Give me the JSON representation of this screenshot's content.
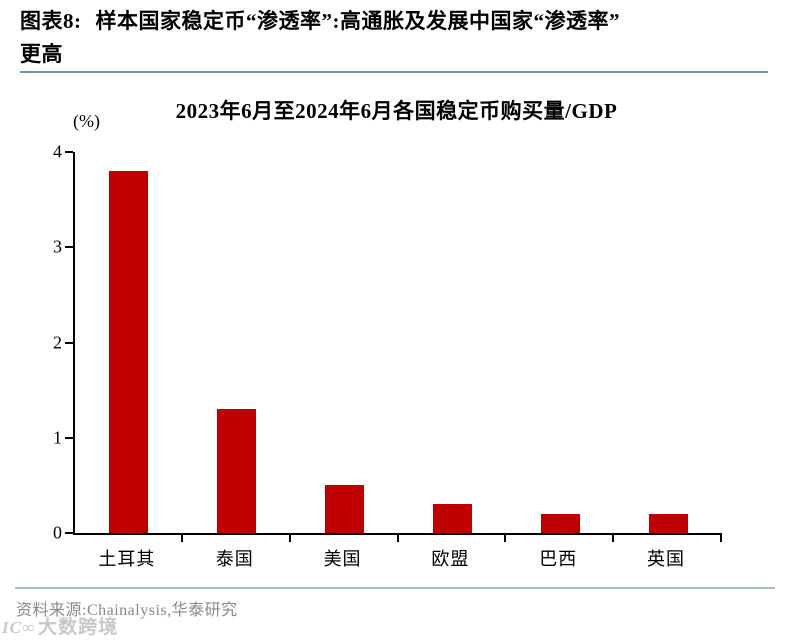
{
  "header": {
    "label": "图表8:",
    "title_line1": "样本国家稳定币“渗透率”:高通胀及发展中国家“渗透率”",
    "title_line2": "更高"
  },
  "chart_data": {
    "type": "bar",
    "title": "2023年6月至2024年6月各国稳定币购买量/GDP",
    "unit_label": "(%)",
    "categories": [
      "土耳其",
      "泰国",
      "美国",
      "欧盟",
      "巴西",
      "英国"
    ],
    "values": [
      3.8,
      1.3,
      0.5,
      0.3,
      0.2,
      0.2
    ],
    "ylim": [
      0,
      4
    ],
    "yticks": [
      0,
      1,
      2,
      3,
      4
    ],
    "bar_color": "#c00000",
    "axis_color": "#000000",
    "grid": false,
    "legend": "none"
  },
  "footer": {
    "source": "资料来源:Chainalysis,华泰研究"
  },
  "watermark": {
    "logo": "IC∞",
    "text": "大数跨境"
  }
}
